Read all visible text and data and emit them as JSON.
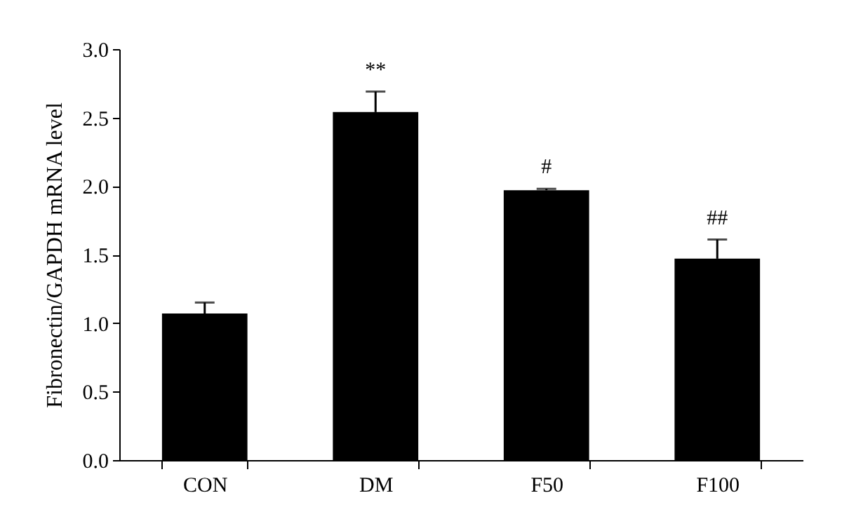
{
  "chart_data": {
    "type": "bar",
    "ylabel": "Fibronectin/GAPDH mRNA level",
    "categories": [
      "CON",
      "DM",
      "F50",
      "F100"
    ],
    "values": [
      1.07,
      2.54,
      1.97,
      1.47
    ],
    "color": "#000000",
    "errors": [
      0.08,
      0.15,
      0.01,
      0.14
    ],
    "ylim": [
      0,
      3.0
    ],
    "yticks": [
      {
        "value": 0,
        "label": "0.0"
      },
      {
        "value": 0.5,
        "label": "0.5"
      },
      {
        "value": 1.0,
        "label": "1.0"
      },
      {
        "value": 1.5,
        "label": "1.5"
      },
      {
        "value": 2.0,
        "label": "2.0"
      },
      {
        "value": 2.5,
        "label": "2.5"
      },
      {
        "value": 3.0,
        "label": "3.0"
      }
    ],
    "annotations": [
      {
        "text": "**",
        "x": "DM",
        "y": 2.69
      },
      {
        "text": "#",
        "x": "F50",
        "y": 1.98
      },
      {
        "text": "##",
        "x": "F100",
        "y": 1.61
      }
    ],
    "grid": false
  }
}
